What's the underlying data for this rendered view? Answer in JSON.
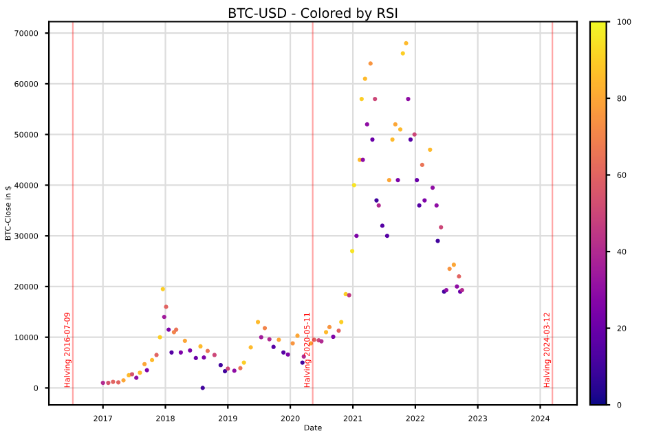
{
  "chart_data": {
    "type": "scatter",
    "title": "BTC-USD - Colored by RSI",
    "xlabel": "Date",
    "ylabel": "BTC-Close in $",
    "marker": "circle",
    "grid": true,
    "x": [
      "2017-01-01",
      "2017-02-01",
      "2017-03-01",
      "2017-04-01",
      "2017-05-01",
      "2017-06-01",
      "2017-06-20",
      "2017-07-15",
      "2017-08-05",
      "2017-09-01",
      "2017-09-15",
      "2017-10-15",
      "2017-11-10",
      "2017-11-30",
      "2017-12-17",
      "2017-12-25",
      "2018-01-05",
      "2018-01-20",
      "2018-02-06",
      "2018-02-20",
      "2018-03-05",
      "2018-04-01",
      "2018-04-25",
      "2018-05-25",
      "2018-06-28",
      "2018-07-25",
      "2018-08-07",
      "2018-08-14",
      "2018-09-05",
      "2018-10-15",
      "2018-11-20",
      "2018-12-15",
      "2019-01-01",
      "2019-02-08",
      "2019-03-15",
      "2019-04-05",
      "2019-05-15",
      "2019-06-26",
      "2019-07-15",
      "2019-08-05",
      "2019-09-01",
      "2019-09-25",
      "2019-10-26",
      "2019-11-22",
      "2019-12-18",
      "2020-01-15",
      "2020-02-12",
      "2020-03-12",
      "2020-03-20",
      "2020-04-30",
      "2020-05-20",
      "2020-06-15",
      "2020-07-01",
      "2020-07-28",
      "2020-08-17",
      "2020-09-08",
      "2020-10-10",
      "2020-10-25",
      "2020-11-20",
      "2020-12-10",
      "2020-12-28",
      "2021-01-08",
      "2021-01-22",
      "2021-02-10",
      "2021-02-21",
      "2021-02-28",
      "2021-03-13",
      "2021-03-25",
      "2021-04-14",
      "2021-04-25",
      "2021-05-10",
      "2021-05-19",
      "2021-06-01",
      "2021-06-22",
      "2021-07-20",
      "2021-08-01",
      "2021-08-20",
      "2021-09-06",
      "2021-09-21",
      "2021-10-05",
      "2021-10-20",
      "2021-11-08",
      "2021-11-20",
      "2021-12-04",
      "2021-12-27",
      "2022-01-10",
      "2022-01-24",
      "2022-02-10",
      "2022-02-24",
      "2022-03-28",
      "2022-04-12",
      "2022-05-05",
      "2022-05-12",
      "2022-05-31",
      "2022-06-18",
      "2022-07-01",
      "2022-07-20",
      "2022-08-14",
      "2022-09-01",
      "2022-09-13",
      "2022-09-20",
      "2022-10-01"
    ],
    "values": [
      1000,
      1000,
      1200,
      1100,
      1500,
      2500,
      2700,
      2000,
      3000,
      4700,
      3500,
      5500,
      6500,
      10000,
      19500,
      14000,
      16000,
      11500,
      7000,
      11000,
      11500,
      7000,
      9300,
      7400,
      5900,
      8200,
      0,
      6000,
      7300,
      6500,
      4500,
      3300,
      3800,
      3400,
      3900,
      5000,
      8000,
      13000,
      10000,
      11800,
      9600,
      8100,
      9500,
      7000,
      6600,
      8800,
      10300,
      5000,
      6200,
      8800,
      9500,
      9400,
      9200,
      11000,
      12000,
      10100,
      11300,
      13000,
      18500,
      18300,
      27000,
      40000,
      30000,
      45000,
      57000,
      45000,
      61000,
      52000,
      64000,
      49000,
      57000,
      37000,
      36000,
      32000,
      30000,
      41000,
      49000,
      52000,
      41000,
      51000,
      66000,
      68000,
      57000,
      49000,
      50000,
      41000,
      36000,
      44000,
      37000,
      47000,
      39500,
      36000,
      29000,
      31700,
      19000,
      19300,
      23500,
      24300,
      20000,
      22000,
      19000,
      19300
    ],
    "cvalues": [
      40,
      55,
      60,
      60,
      80,
      85,
      55,
      30,
      85,
      80,
      25,
      85,
      60,
      90,
      90,
      35,
      60,
      25,
      15,
      70,
      65,
      25,
      80,
      25,
      20,
      85,
      10,
      25,
      65,
      50,
      10,
      10,
      50,
      30,
      65,
      90,
      85,
      85,
      35,
      70,
      40,
      15,
      80,
      15,
      25,
      75,
      80,
      10,
      40,
      80,
      60,
      50,
      40,
      85,
      75,
      25,
      60,
      90,
      90,
      45,
      95,
      95,
      25,
      85,
      90,
      30,
      85,
      30,
      75,
      20,
      50,
      10,
      40,
      15,
      15,
      80,
      85,
      80,
      25,
      85,
      90,
      85,
      30,
      15,
      50,
      20,
      15,
      65,
      25,
      85,
      30,
      30,
      10,
      50,
      10,
      30,
      75,
      80,
      30,
      60,
      20,
      40
    ],
    "xlim": [
      "2016-02-20",
      "2024-08-03"
    ],
    "ylim": [
      -3340,
      72260
    ],
    "xticks": [
      {
        "value": "2017-01-01",
        "label": "2017"
      },
      {
        "value": "2018-01-01",
        "label": "2018"
      },
      {
        "value": "2019-01-01",
        "label": "2019"
      },
      {
        "value": "2020-01-01",
        "label": "2020"
      },
      {
        "value": "2021-01-01",
        "label": "2021"
      },
      {
        "value": "2022-01-01",
        "label": "2022"
      },
      {
        "value": "2023-01-01",
        "label": "2023"
      },
      {
        "value": "2024-01-01",
        "label": "2024"
      }
    ],
    "yticks": [
      0,
      10000,
      20000,
      30000,
      40000,
      50000,
      60000,
      70000
    ],
    "clim": [
      0,
      100
    ],
    "cticks": [
      0,
      20,
      40,
      60,
      80,
      100
    ],
    "ref_lines": [
      {
        "axis": "x",
        "value": "2016-07-09",
        "label": "Halving 2016-07-09",
        "color": "#ff0000"
      },
      {
        "axis": "x",
        "value": "2020-05-11",
        "label": "Halving 2020-05-11",
        "color": "#ff0000"
      },
      {
        "axis": "x",
        "value": "2024-03-12",
        "label": "Halving 2024-03-12",
        "color": "#ff0000"
      }
    ]
  }
}
